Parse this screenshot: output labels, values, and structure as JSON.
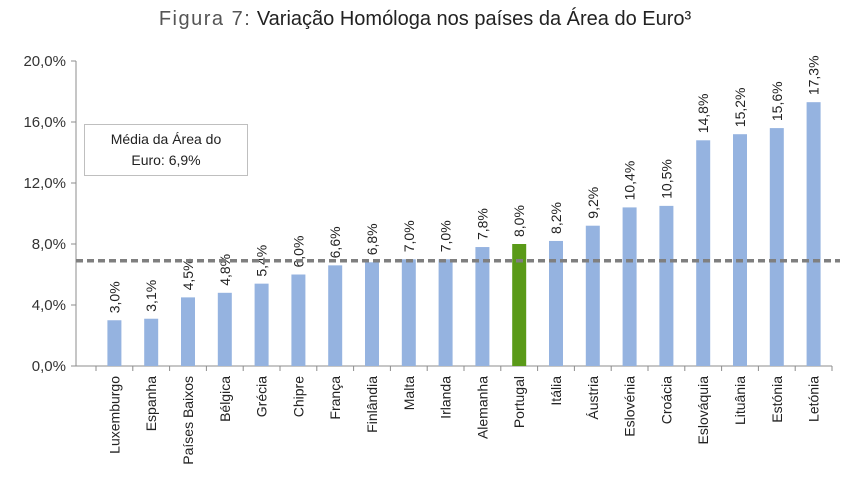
{
  "chart_data": {
    "type": "bar",
    "title_lead": "Figura 7:",
    "title_rest": "Variação Homóloga nos países da Área do Euro³",
    "categories": [
      "Luxemburgo",
      "Espanha",
      "Países Baixos",
      "Bélgica",
      "Grécia",
      "Chipre",
      "França",
      "Finlândia",
      "Malta",
      "Irlanda",
      "Alemanha",
      "Portugal",
      "Itália",
      "Áustria",
      "Eslovénia",
      "Croácia",
      "Eslováquia",
      "Lituânia",
      "Estónia",
      "Letónia"
    ],
    "values": [
      3.0,
      3.1,
      4.5,
      4.8,
      5.4,
      6.0,
      6.6,
      6.8,
      7.0,
      7.0,
      7.8,
      8.0,
      8.2,
      9.2,
      10.4,
      10.5,
      14.8,
      15.2,
      15.6,
      17.3
    ],
    "value_labels": [
      "3,0%",
      "3,1%",
      "4,5%",
      "4,8%",
      "5,4%",
      "6,0%",
      "6,6%",
      "6,8%",
      "7,0%",
      "7,0%",
      "7,8%",
      "8,0%",
      "8,2%",
      "9,2%",
      "10,4%",
      "10,5%",
      "14,8%",
      "15,2%",
      "15,6%",
      "17,3%"
    ],
    "highlight": "Portugal",
    "colors": {
      "bar": "#95b3e0",
      "highlight": "#5a9a18",
      "average_line": "#7f7f7f"
    },
    "ylim": [
      0,
      20
    ],
    "yticks": [
      0,
      4,
      8,
      12,
      16,
      20
    ],
    "ytick_labels": [
      "0,0%",
      "4,0%",
      "8,0%",
      "12,0%",
      "16,0%",
      "20,0%"
    ],
    "xlabel": "",
    "ylabel": "",
    "average": 6.9,
    "average_label_line1": "Média da Área do",
    "average_label_line2": "Euro: 6,9%"
  }
}
